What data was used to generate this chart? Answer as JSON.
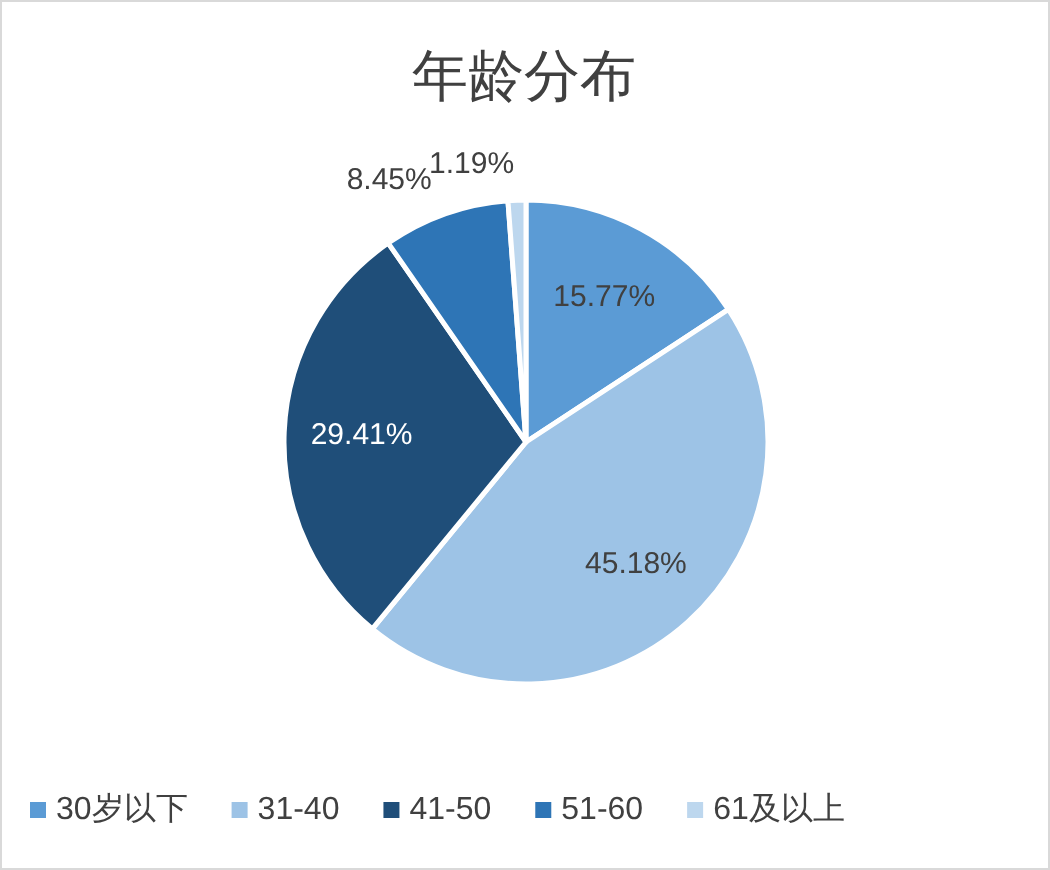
{
  "chart_data": {
    "type": "pie",
    "title": "年龄分布",
    "categories": [
      "30岁以下",
      "31-40",
      "41-50",
      "51-60",
      "61及以上"
    ],
    "values": [
      15.77,
      45.18,
      29.41,
      8.45,
      1.19
    ],
    "colors": [
      "#5b9bd5",
      "#9dc3e6",
      "#1f4e79",
      "#2e75b6",
      "#bdd7ee"
    ],
    "value_labels": [
      "15.77%",
      "45.18%",
      "29.41%",
      "8.45%",
      "1.19%"
    ],
    "legend": "bottom"
  }
}
